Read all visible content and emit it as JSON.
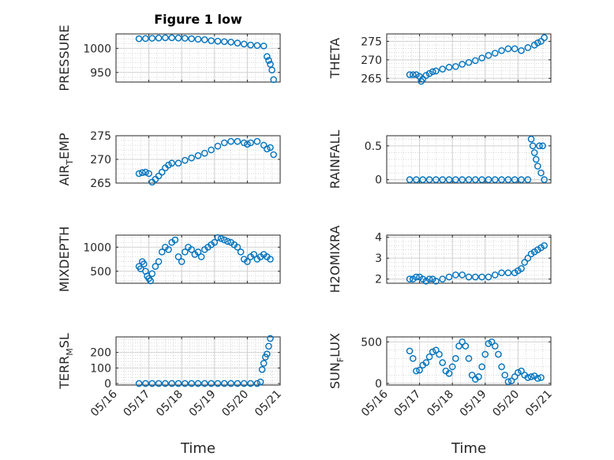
{
  "figure": {
    "title": "Figure 1 low",
    "xlabel": "Time"
  },
  "colors": {
    "marker": "#0072BD",
    "axis": "#262626",
    "grid": "#b0b0b0",
    "background": "#ffffff"
  },
  "chart_data": [
    {
      "type": "scatter",
      "ylabel_main": "PRESSURE",
      "ylabel_sub": "",
      "ylabel_tail": "",
      "ylim": [
        930,
        1030
      ],
      "yticks": [
        950,
        1000
      ],
      "xlim": [
        "05/16",
        "05/21"
      ],
      "xticks_shown": false,
      "x": [
        0.7,
        0.9,
        1.1,
        1.3,
        1.5,
        1.7,
        1.9,
        2.1,
        2.3,
        2.5,
        2.7,
        2.9,
        3.1,
        3.3,
        3.5,
        3.7,
        3.9,
        4.1,
        4.3,
        4.5,
        4.6,
        4.65,
        4.7,
        4.75,
        4.8
      ],
      "y": [
        1020,
        1020.5,
        1021,
        1021.5,
        1022,
        1022,
        1021.5,
        1021,
        1020,
        1019,
        1018,
        1016,
        1015,
        1014,
        1013,
        1011,
        1009,
        1007,
        1006,
        1005,
        983,
        975,
        967,
        955,
        935
      ]
    },
    {
      "type": "scatter",
      "ylabel_main": "THETA",
      "ylabel_sub": "",
      "ylabel_tail": "",
      "ylim": [
        264,
        277
      ],
      "yticks": [
        265,
        270,
        275
      ],
      "xlim": [
        "05/16",
        "05/21"
      ],
      "xticks_shown": false,
      "x": [
        0.7,
        0.8,
        0.9,
        1.0,
        1.05,
        1.1,
        1.2,
        1.3,
        1.4,
        1.5,
        1.7,
        1.9,
        2.1,
        2.3,
        2.5,
        2.7,
        2.9,
        3.1,
        3.3,
        3.5,
        3.7,
        3.9,
        4.1,
        4.3,
        4.5,
        4.6,
        4.7,
        4.8
      ],
      "y": [
        266,
        266,
        266,
        265.5,
        264.2,
        264.8,
        265.8,
        266.3,
        266.8,
        267,
        267.5,
        268,
        268.2,
        268.8,
        269.3,
        269.8,
        270.5,
        271.2,
        271.8,
        272.5,
        273,
        273,
        272.5,
        273.3,
        274,
        274.6,
        275,
        276
      ]
    },
    {
      "type": "scatter",
      "ylabel_main": "AIR",
      "ylabel_sub": "T",
      "ylabel_tail": "EMP",
      "ylim": [
        265,
        275
      ],
      "yticks": [
        265,
        270,
        275
      ],
      "xlim": [
        "05/16",
        "05/21"
      ],
      "xticks_shown": false,
      "x": [
        0.7,
        0.8,
        0.9,
        1.0,
        1.1,
        1.2,
        1.3,
        1.4,
        1.5,
        1.6,
        1.7,
        1.9,
        2.1,
        2.3,
        2.5,
        2.7,
        2.9,
        3.1,
        3.3,
        3.5,
        3.7,
        3.9,
        4.0,
        4.1,
        4.3,
        4.5,
        4.6,
        4.7,
        4.8
      ],
      "y": [
        267,
        267.2,
        267.3,
        267,
        265.2,
        265.8,
        266.5,
        267.3,
        268.2,
        268.8,
        269.2,
        269.2,
        269.8,
        270.3,
        270.8,
        271.3,
        272,
        272.8,
        273.5,
        273.8,
        273.8,
        273.5,
        273.2,
        273.5,
        273.8,
        273,
        272.2,
        272.5,
        271
      ]
    },
    {
      "type": "scatter",
      "ylabel_main": "RAINFALL",
      "ylabel_sub": "",
      "ylabel_tail": "",
      "ylim": [
        -0.05,
        0.65
      ],
      "yticks": [
        0,
        0.5
      ],
      "xlim": [
        "05/16",
        "05/21"
      ],
      "xticks_shown": false,
      "x": [
        0.7,
        0.9,
        1.1,
        1.3,
        1.5,
        1.7,
        1.9,
        2.1,
        2.3,
        2.5,
        2.7,
        2.9,
        3.1,
        3.3,
        3.5,
        3.7,
        3.9,
        4.1,
        4.3,
        4.4,
        4.45,
        4.5,
        4.55,
        4.6,
        4.65,
        4.7,
        4.75,
        4.8
      ],
      "y": [
        0,
        0,
        0,
        0,
        0,
        0,
        0,
        0,
        0,
        0,
        0,
        0,
        0,
        0,
        0,
        0,
        0,
        0,
        0,
        0.6,
        0.5,
        0.4,
        0.3,
        0.2,
        0.5,
        0.1,
        0.5,
        0
      ]
    },
    {
      "type": "scatter",
      "ylabel_main": "MIXDEPTH",
      "ylabel_sub": "",
      "ylabel_tail": "",
      "ylim": [
        250,
        1250
      ],
      "yticks": [
        500,
        1000
      ],
      "xlim": [
        "05/16",
        "05/21"
      ],
      "xticks_shown": false,
      "x": [
        0.7,
        0.75,
        0.8,
        0.85,
        0.9,
        0.95,
        1.0,
        1.05,
        1.1,
        1.2,
        1.3,
        1.4,
        1.5,
        1.6,
        1.7,
        1.8,
        1.9,
        2.0,
        2.1,
        2.2,
        2.3,
        2.4,
        2.5,
        2.6,
        2.7,
        2.8,
        2.9,
        3.0,
        3.1,
        3.2,
        3.3,
        3.4,
        3.5,
        3.6,
        3.7,
        3.8,
        3.9,
        4.0,
        4.1,
        4.2,
        4.3,
        4.4,
        4.5,
        4.6,
        4.7
      ],
      "y": [
        600,
        550,
        700,
        650,
        500,
        400,
        350,
        300,
        450,
        600,
        700,
        900,
        1000,
        950,
        1100,
        1150,
        800,
        700,
        900,
        1000,
        950,
        850,
        900,
        800,
        950,
        1000,
        1050,
        1100,
        1200,
        1180,
        1150,
        1120,
        1100,
        1050,
        1000,
        900,
        750,
        700,
        800,
        850,
        750,
        800,
        850,
        800,
        750
      ]
    },
    {
      "type": "scatter",
      "ylabel_main": "H2OMIXRA",
      "ylabel_sub": "",
      "ylabel_tail": "",
      "ylim": [
        1.8,
        4.1
      ],
      "yticks": [
        2,
        3,
        4
      ],
      "xlim": [
        "05/16",
        "05/21"
      ],
      "xticks_shown": false,
      "x": [
        0.7,
        0.8,
        0.9,
        1.0,
        1.1,
        1.2,
        1.3,
        1.4,
        1.5,
        1.7,
        1.9,
        2.1,
        2.3,
        2.5,
        2.7,
        2.9,
        3.1,
        3.3,
        3.5,
        3.7,
        3.9,
        4.0,
        4.1,
        4.2,
        4.3,
        4.4,
        4.5,
        4.6,
        4.7,
        4.8
      ],
      "y": [
        2,
        2,
        2.1,
        2.1,
        2,
        1.9,
        2,
        2,
        1.9,
        2,
        2.1,
        2.2,
        2.2,
        2.1,
        2.1,
        2.1,
        2.1,
        2.2,
        2.3,
        2.3,
        2.3,
        2.4,
        2.5,
        2.8,
        3,
        3.2,
        3.3,
        3.4,
        3.5,
        3.6
      ]
    },
    {
      "type": "scatter",
      "ylabel_main": "TERR",
      "ylabel_sub": "M",
      "ylabel_tail": "SL",
      "ylim": [
        -10,
        300
      ],
      "yticks": [
        0,
        100,
        200
      ],
      "xlim": [
        "05/16",
        "05/21"
      ],
      "xticks_shown": true,
      "x": [
        0.7,
        0.9,
        1.1,
        1.3,
        1.5,
        1.7,
        1.9,
        2.1,
        2.3,
        2.5,
        2.7,
        2.9,
        3.1,
        3.3,
        3.5,
        3.7,
        3.9,
        4.1,
        4.3,
        4.4,
        4.45,
        4.5,
        4.55,
        4.6,
        4.65,
        4.7
      ],
      "y": [
        0,
        0,
        0,
        0,
        0,
        0,
        0,
        0,
        0,
        0,
        0,
        0,
        0,
        0,
        0,
        0,
        0,
        0,
        0,
        10,
        90,
        130,
        170,
        190,
        240,
        290
      ]
    },
    {
      "type": "scatter",
      "ylabel_main": "SUN",
      "ylabel_sub": "F",
      "ylabel_tail": "LUX",
      "ylim": [
        -20,
        560
      ],
      "yticks": [
        0,
        500
      ],
      "xlim": [
        "05/16",
        "05/21"
      ],
      "xticks_shown": true,
      "x": [
        0.7,
        0.8,
        0.9,
        1.0,
        1.1,
        1.2,
        1.3,
        1.4,
        1.5,
        1.6,
        1.7,
        1.8,
        1.9,
        2.0,
        2.1,
        2.2,
        2.3,
        2.4,
        2.5,
        2.6,
        2.7,
        2.8,
        2.9,
        3.0,
        3.1,
        3.2,
        3.3,
        3.4,
        3.5,
        3.6,
        3.7,
        3.8,
        3.9,
        4.0,
        4.1,
        4.2,
        4.3,
        4.4,
        4.5,
        4.6,
        4.7
      ],
      "y": [
        390,
        300,
        150,
        160,
        220,
        250,
        320,
        380,
        400,
        350,
        250,
        150,
        120,
        200,
        300,
        450,
        500,
        450,
        300,
        100,
        50,
        80,
        200,
        350,
        480,
        500,
        450,
        350,
        200,
        100,
        20,
        30,
        80,
        130,
        150,
        100,
        70,
        80,
        90,
        60,
        70
      ]
    }
  ],
  "xticklabels": [
    "05/16",
    "05/17",
    "05/18",
    "05/19",
    "05/20",
    "05/21"
  ]
}
